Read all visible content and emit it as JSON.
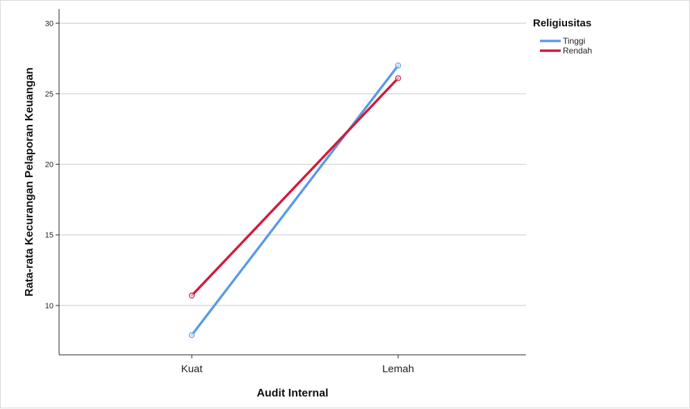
{
  "chart_data": {
    "type": "line",
    "categories": [
      "Kuat",
      "Lemah"
    ],
    "series": [
      {
        "name": "Tinggi",
        "values": [
          7.9,
          27.0
        ],
        "color": "#5b9be6"
      },
      {
        "name": "Rendah",
        "values": [
          10.7,
          26.1
        ],
        "color": "#d21a3c"
      }
    ],
    "xlabel": "Audit Internal",
    "ylabel": "Rata-rata Kecurangan Pelaporan Keuangan",
    "ylim": [
      6.5,
      31
    ],
    "yticks": [
      10,
      15,
      20,
      25,
      30
    ],
    "grid": "horizontal",
    "legend": {
      "title": "Religiusitas",
      "placement": "top-right"
    },
    "markers": "hollow-circle"
  }
}
